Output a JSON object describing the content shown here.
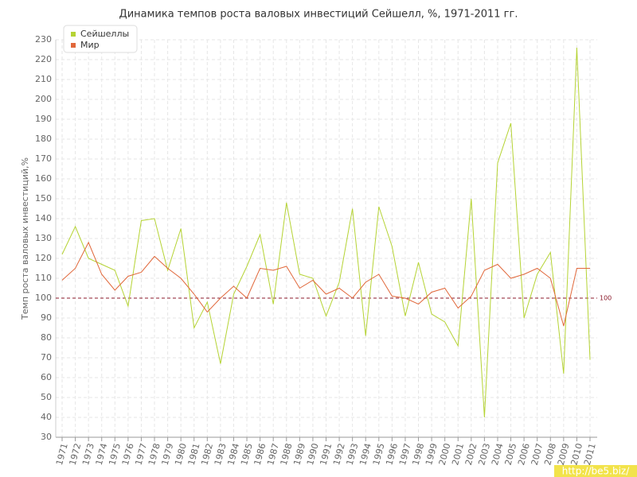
{
  "chart_data": {
    "type": "line",
    "title": "Динамика темпов роста валовых инвестиций Сейшелл, %, 1971-2011 гг.",
    "y_label": "Темп роста валовых инвестиций,%",
    "categories": [
      "1971",
      "1972",
      "1973",
      "1974",
      "1975",
      "1976",
      "1977",
      "1978",
      "1979",
      "1980",
      "1981",
      "1982",
      "1983",
      "1984",
      "1985",
      "1986",
      "1987",
      "1988",
      "1989",
      "1990",
      "1991",
      "1992",
      "1993",
      "1994",
      "1995",
      "1996",
      "1997",
      "1998",
      "1999",
      "2000",
      "2001",
      "2002",
      "2003",
      "2004",
      "2005",
      "2006",
      "2007",
      "2008",
      "2009",
      "2010",
      "2011"
    ],
    "series": [
      {
        "name": "Сейшеллы",
        "color": "#b5d334",
        "values": [
          122,
          136,
          120,
          117,
          114,
          96,
          139,
          140,
          114,
          135,
          85,
          98,
          67,
          102,
          116,
          132,
          97,
          148,
          112,
          110,
          91,
          108,
          145,
          81,
          146,
          126,
          91,
          118,
          92,
          88,
          76,
          150,
          40,
          168,
          188,
          90,
          112,
          123,
          62,
          226,
          69
        ]
      },
      {
        "name": "Мир",
        "color": "#e0673a",
        "values": [
          109,
          115,
          128,
          112,
          104,
          111,
          113,
          121,
          115,
          110,
          102,
          93,
          100,
          106,
          100,
          115,
          114,
          116,
          105,
          109,
          102,
          105,
          100,
          108,
          112,
          101,
          100,
          97,
          103,
          105,
          95,
          101,
          114,
          117,
          110,
          112,
          115,
          110,
          86,
          115,
          115
        ]
      }
    ],
    "reference_line": {
      "value": 100,
      "color": "#8b1a2b"
    },
    "ylim": [
      30,
      230
    ],
    "yticks": [
      30,
      40,
      50,
      60,
      70,
      80,
      90,
      100,
      110,
      120,
      130,
      140,
      150,
      160,
      170,
      180,
      190,
      200,
      210,
      220,
      230
    ],
    "grid": true,
    "legend": "top-left",
    "watermark": "http://be5.biz/"
  }
}
